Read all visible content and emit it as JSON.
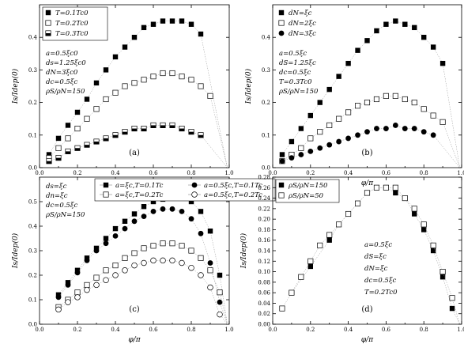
{
  "figure": {
    "xlabel": "φ/π"
  },
  "chart_data": [
    {
      "id": "a",
      "type": "scatter",
      "panel_label": "(a)",
      "ylabel": "Is/Idep(0)",
      "xlim": [
        0,
        1.0
      ],
      "ylim": [
        0,
        0.5
      ],
      "xticks": [
        0.0,
        0.2,
        0.4,
        0.6,
        0.8,
        1.0
      ],
      "yticks": [
        0.0,
        0.1,
        0.2,
        0.3,
        0.4
      ],
      "grid": false,
      "legend_position": "top-left",
      "annotations": [
        "a=0.5ξc0",
        "ds=1.25ξc0",
        "dN=3ξc0",
        "dc=0.5ξc",
        "ρS/ρN=150"
      ],
      "series": [
        {
          "name": "T=0.1Tc0",
          "marker": "filled-square",
          "x": [
            0.05,
            0.1,
            0.15,
            0.2,
            0.25,
            0.3,
            0.35,
            0.4,
            0.45,
            0.5,
            0.55,
            0.6,
            0.65,
            0.7,
            0.75,
            0.8,
            0.85
          ],
          "y": [
            0.04,
            0.09,
            0.13,
            0.17,
            0.21,
            0.26,
            0.3,
            0.34,
            0.37,
            0.4,
            0.43,
            0.44,
            0.45,
            0.45,
            0.45,
            0.44,
            0.41
          ]
        },
        {
          "name": "T=0.2Tc0",
          "marker": "open-square",
          "x": [
            0.05,
            0.1,
            0.15,
            0.2,
            0.25,
            0.3,
            0.35,
            0.4,
            0.45,
            0.5,
            0.55,
            0.6,
            0.65,
            0.7,
            0.75,
            0.8,
            0.85,
            0.9
          ],
          "y": [
            0.03,
            0.06,
            0.09,
            0.12,
            0.15,
            0.18,
            0.21,
            0.23,
            0.25,
            0.26,
            0.27,
            0.28,
            0.29,
            0.29,
            0.28,
            0.27,
            0.25,
            0.22
          ]
        },
        {
          "name": "T=0.3Tc0",
          "marker": "half-square",
          "x": [
            0.05,
            0.1,
            0.15,
            0.2,
            0.25,
            0.3,
            0.35,
            0.4,
            0.45,
            0.5,
            0.55,
            0.6,
            0.65,
            0.7,
            0.75,
            0.8,
            0.85
          ],
          "y": [
            0.02,
            0.03,
            0.05,
            0.06,
            0.07,
            0.08,
            0.09,
            0.1,
            0.11,
            0.12,
            0.12,
            0.13,
            0.13,
            0.13,
            0.12,
            0.11,
            0.1
          ]
        }
      ]
    },
    {
      "id": "b",
      "type": "scatter",
      "panel_label": "(b)",
      "ylabel": "Is/Idep(0)",
      "xlim": [
        0,
        1.0
      ],
      "ylim": [
        0,
        0.5
      ],
      "xticks": [
        0.0,
        0.2,
        0.4,
        0.6,
        0.8,
        1.0
      ],
      "yticks": [
        0.0,
        0.1,
        0.2,
        0.3,
        0.4
      ],
      "grid": false,
      "legend_position": "top-left",
      "annotations": [
        "a=0.5ξc",
        "dS=1.25ξc",
        "dc=0.5ξc",
        "T=0.3Tc0",
        "ρS/ρN=150"
      ],
      "series": [
        {
          "name": "dN=ξc",
          "marker": "filled-square",
          "x": [
            0.05,
            0.1,
            0.15,
            0.2,
            0.25,
            0.3,
            0.35,
            0.4,
            0.45,
            0.5,
            0.55,
            0.6,
            0.65,
            0.7,
            0.75,
            0.8,
            0.85,
            0.9
          ],
          "y": [
            0.04,
            0.08,
            0.12,
            0.16,
            0.2,
            0.24,
            0.28,
            0.32,
            0.36,
            0.39,
            0.42,
            0.44,
            0.45,
            0.44,
            0.43,
            0.4,
            0.37,
            0.32
          ]
        },
        {
          "name": "dN=2ξc",
          "marker": "open-square",
          "x": [
            0.05,
            0.1,
            0.15,
            0.2,
            0.25,
            0.3,
            0.35,
            0.4,
            0.45,
            0.5,
            0.55,
            0.6,
            0.65,
            0.7,
            0.75,
            0.8,
            0.85,
            0.9
          ],
          "y": [
            0.02,
            0.04,
            0.06,
            0.09,
            0.11,
            0.13,
            0.15,
            0.17,
            0.19,
            0.2,
            0.21,
            0.22,
            0.22,
            0.21,
            0.2,
            0.18,
            0.16,
            0.14
          ]
        },
        {
          "name": "dN=3ξc",
          "marker": "filled-circle",
          "x": [
            0.05,
            0.1,
            0.15,
            0.2,
            0.25,
            0.3,
            0.35,
            0.4,
            0.45,
            0.5,
            0.55,
            0.6,
            0.65,
            0.7,
            0.75,
            0.8,
            0.85
          ],
          "y": [
            0.02,
            0.03,
            0.04,
            0.05,
            0.06,
            0.07,
            0.08,
            0.09,
            0.1,
            0.11,
            0.12,
            0.12,
            0.13,
            0.12,
            0.12,
            0.11,
            0.1
          ]
        }
      ]
    },
    {
      "id": "c",
      "type": "scatter",
      "panel_label": "(c)",
      "ylabel": "Is/Idep(0)",
      "xlim": [
        0,
        1.0
      ],
      "ylim": [
        0,
        0.6
      ],
      "xticks": [
        0.0,
        0.2,
        0.4,
        0.6,
        0.8,
        1.0
      ],
      "yticks": [
        0.0,
        0.1,
        0.2,
        0.3,
        0.4,
        0.5
      ],
      "grid": false,
      "legend_position": "top-right",
      "annotations": [
        "ds=ξc",
        "dn=ξc",
        "dc=0.5ξc",
        "ρS/ρN=150"
      ],
      "series": [
        {
          "name": "a=ξc,T=0.1Tc",
          "marker": "filled-square",
          "x": [
            0.1,
            0.15,
            0.2,
            0.25,
            0.3,
            0.35,
            0.4,
            0.45,
            0.5,
            0.55,
            0.6,
            0.65,
            0.7,
            0.75,
            0.8,
            0.85,
            0.9,
            0.95
          ],
          "y": [
            0.12,
            0.17,
            0.22,
            0.27,
            0.31,
            0.35,
            0.39,
            0.42,
            0.45,
            0.48,
            0.5,
            0.51,
            0.52,
            0.52,
            0.5,
            0.46,
            0.38,
            0.2
          ]
        },
        {
          "name": "a=0.5ξc,T=0.1Tc",
          "marker": "filled-circle",
          "x": [
            0.1,
            0.15,
            0.2,
            0.25,
            0.3,
            0.35,
            0.4,
            0.45,
            0.5,
            0.55,
            0.6,
            0.65,
            0.7,
            0.75,
            0.8,
            0.85,
            0.9,
            0.95
          ],
          "y": [
            0.11,
            0.16,
            0.21,
            0.26,
            0.3,
            0.33,
            0.36,
            0.39,
            0.42,
            0.44,
            0.46,
            0.47,
            0.47,
            0.46,
            0.43,
            0.37,
            0.25,
            0.09
          ]
        },
        {
          "name": "a=ξc,T=0.2Tc",
          "marker": "open-square",
          "x": [
            0.1,
            0.15,
            0.2,
            0.25,
            0.3,
            0.35,
            0.4,
            0.45,
            0.5,
            0.55,
            0.6,
            0.65,
            0.7,
            0.75,
            0.8,
            0.85,
            0.9,
            0.95
          ],
          "y": [
            0.07,
            0.1,
            0.13,
            0.16,
            0.19,
            0.22,
            0.24,
            0.27,
            0.29,
            0.31,
            0.32,
            0.33,
            0.33,
            0.32,
            0.3,
            0.27,
            0.22,
            0.13
          ]
        },
        {
          "name": "a=0.5ξc,T=0.2Tc",
          "marker": "open-circle",
          "x": [
            0.1,
            0.15,
            0.2,
            0.25,
            0.3,
            0.35,
            0.4,
            0.45,
            0.5,
            0.55,
            0.6,
            0.65,
            0.7,
            0.75,
            0.8,
            0.85,
            0.9,
            0.95
          ],
          "y": [
            0.06,
            0.09,
            0.11,
            0.14,
            0.16,
            0.18,
            0.2,
            0.22,
            0.24,
            0.25,
            0.26,
            0.26,
            0.26,
            0.25,
            0.23,
            0.2,
            0.15,
            0.04
          ]
        }
      ]
    },
    {
      "id": "d",
      "type": "scatter",
      "panel_label": "(d)",
      "ylabel": "Is/Idep(0)",
      "xlim": [
        0,
        1.0
      ],
      "ylim": [
        0,
        0.28
      ],
      "xticks": [
        0.0,
        0.2,
        0.4,
        0.6,
        0.8,
        1.0
      ],
      "yticks": [
        0.0,
        0.02,
        0.04,
        0.06,
        0.08,
        0.1,
        0.12,
        0.14,
        0.16,
        0.18,
        0.2,
        0.22,
        0.24,
        0.26,
        0.28
      ],
      "grid": false,
      "legend_position": "top-left",
      "annotations": [
        "a=0.5ξc",
        "dS=ξc",
        "dN=ξc",
        "dc=0.5ξc",
        "T=0.2Tc0"
      ],
      "series": [
        {
          "name": "ρS/ρN=150",
          "marker": "filled-square",
          "x": [
            0.1,
            0.2,
            0.3,
            0.35,
            0.4,
            0.45,
            0.5,
            0.55,
            0.6,
            0.65,
            0.7,
            0.75,
            0.8,
            0.85,
            0.9,
            0.95
          ],
          "y": [
            0.06,
            0.11,
            0.16,
            0.19,
            0.21,
            0.23,
            0.25,
            0.26,
            0.26,
            0.25,
            0.24,
            0.21,
            0.18,
            0.14,
            0.09,
            0.03
          ]
        },
        {
          "name": "ρS/ρN=50",
          "marker": "open-square",
          "x": [
            0.05,
            0.1,
            0.15,
            0.2,
            0.25,
            0.3,
            0.35,
            0.4,
            0.45,
            0.5,
            0.55,
            0.6,
            0.65,
            0.7,
            0.75,
            0.8,
            0.85,
            0.9,
            0.95
          ],
          "y": [
            0.03,
            0.06,
            0.09,
            0.12,
            0.15,
            0.17,
            0.19,
            0.21,
            0.23,
            0.25,
            0.26,
            0.26,
            0.26,
            0.24,
            0.22,
            0.19,
            0.15,
            0.1,
            0.05
          ]
        }
      ]
    }
  ]
}
